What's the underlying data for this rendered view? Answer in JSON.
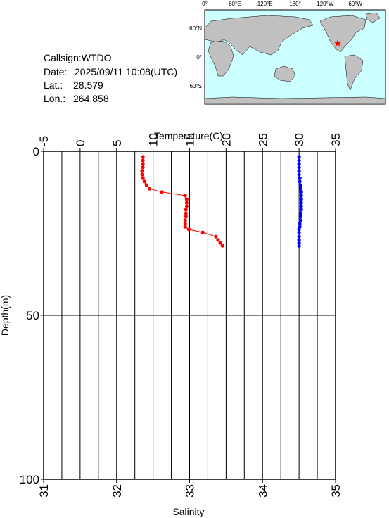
{
  "info": {
    "callsign_label": "Callsign:",
    "callsign": "WTDO",
    "date_label": "Date:",
    "date": "2025/09/11 10:08(UTC)",
    "lat_label": "Lat.:",
    "lat": 28.579,
    "lon_label": "Lon.:",
    "lon": 264.858
  },
  "map": {
    "lon_labels": [
      "0°",
      "60°E",
      "120°E",
      "180°",
      "120°W",
      "60°W"
    ],
    "lat_labels": [
      "60°N",
      "0°",
      "60°S"
    ],
    "marker_color": "#ff0000"
  },
  "chart_data": {
    "type": "line",
    "x_label": "Temperature(C)",
    "x2_label": "Salinity",
    "y_label": "Depth(m)",
    "xlim": [
      -5,
      35
    ],
    "xticks": [
      -5,
      0,
      5,
      10,
      15,
      20,
      25,
      30,
      35
    ],
    "x2lim": [
      31,
      35
    ],
    "x2ticks": [
      31,
      32,
      33,
      34,
      35
    ],
    "ylim": [
      0,
      100
    ],
    "yticks": [
      0,
      50,
      100
    ],
    "y_inverted": true,
    "grid": true,
    "grid_step": 2.5,
    "series": [
      {
        "color": "#ff0000",
        "axis": "x",
        "depth": [
          1.7,
          2.8,
          3.9,
          4.9,
          6.0,
          7.1,
          8.2,
          9.2,
          10.3,
          11.4,
          12.4,
          13.5,
          14.6,
          15.7,
          16.7,
          17.8,
          18.9,
          19.9,
          21.0,
          22.1,
          23.0,
          23.8,
          24.7,
          26.0,
          27.0,
          27.9,
          28.8
        ],
        "values": [
          8.6,
          8.6,
          8.6,
          8.6,
          8.5,
          8.5,
          8.6,
          8.8,
          9.1,
          9.5,
          11.2,
          14.4,
          14.6,
          14.6,
          14.6,
          14.5,
          14.5,
          14.5,
          14.4,
          14.4,
          14.4,
          14.9,
          16.8,
          18.6,
          18.9,
          19.2,
          19.5
        ]
      },
      {
        "color": "#0000ff",
        "axis": "x2",
        "depth": [
          1.7,
          2.8,
          3.9,
          4.9,
          6.0,
          7.1,
          8.2,
          9.2,
          10.3,
          11.4,
          12.4,
          13.5,
          14.6,
          15.7,
          16.7,
          17.8,
          18.9,
          19.9,
          21.0,
          22.1,
          23.0,
          23.8,
          24.7,
          26.0,
          27.0,
          27.9,
          28.8
        ],
        "values": [
          34.5,
          34.5,
          34.5,
          34.5,
          34.5,
          34.5,
          34.51,
          34.51,
          34.52,
          34.52,
          34.53,
          34.53,
          34.53,
          34.53,
          34.53,
          34.53,
          34.52,
          34.52,
          34.52,
          34.51,
          34.51,
          34.5,
          34.5,
          34.5,
          34.5,
          34.5,
          34.5
        ]
      }
    ]
  }
}
